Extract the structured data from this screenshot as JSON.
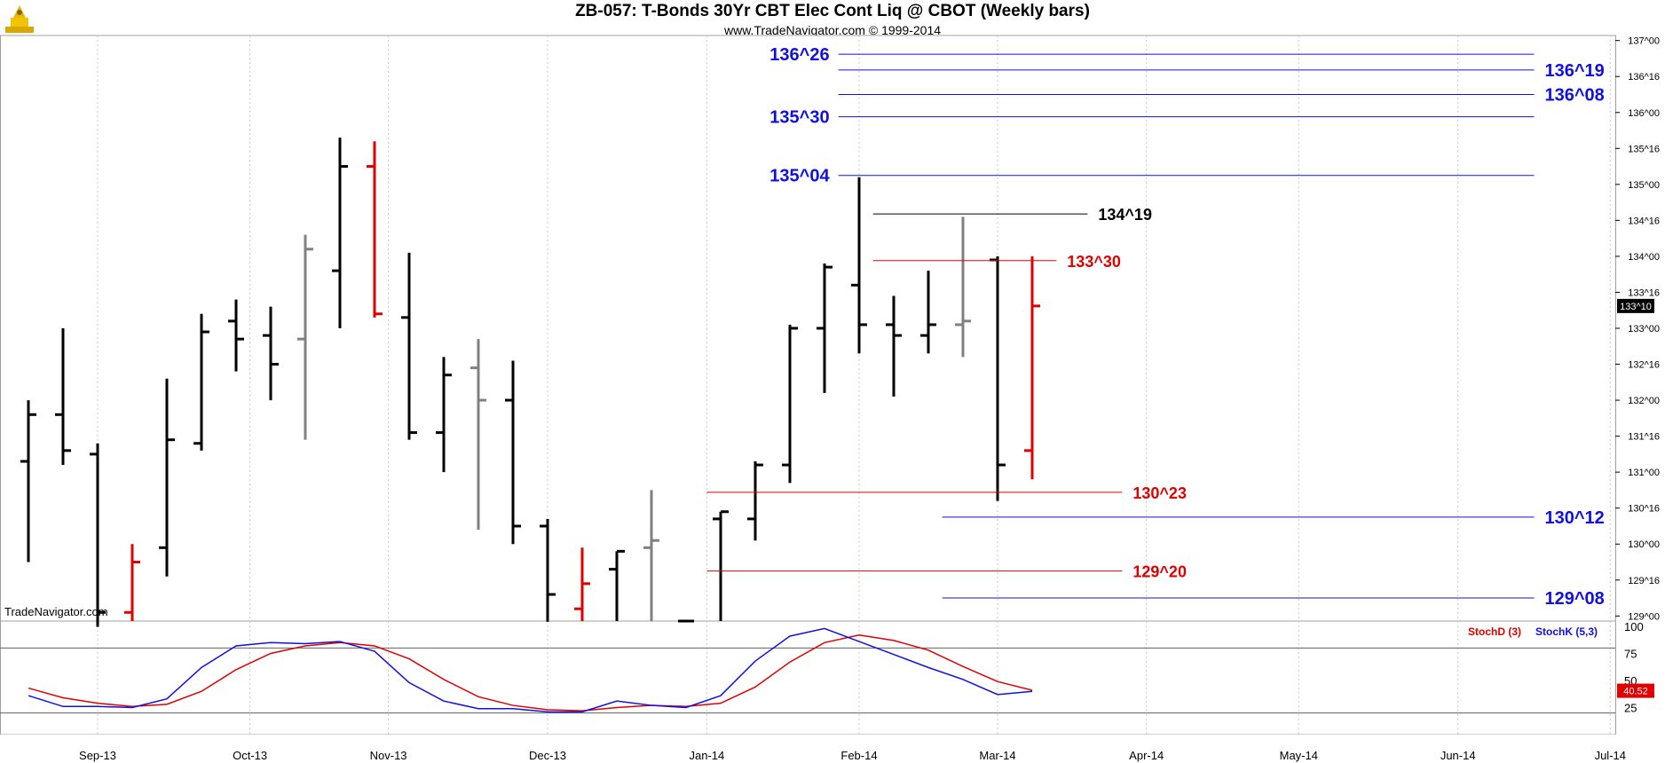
{
  "header": {
    "title": "ZB-057:  T-Bonds 30Yr CBT Elec Cont Liq @ CBOT  (Weekly bars)",
    "subtitle": "www.TradeNavigator.com © 1999-2014",
    "watermark": "TradeNavigator.com"
  },
  "chart_data": {
    "type": "ohlc",
    "price_axis": {
      "range": [
        128.93,
        137.07
      ],
      "ticks": [
        {
          "v": 137.0,
          "label": "137^00"
        },
        {
          "v": 136.5,
          "label": "136^16"
        },
        {
          "v": 136.0,
          "label": "136^00"
        },
        {
          "v": 135.5,
          "label": "135^16"
        },
        {
          "v": 135.0,
          "label": "135^00"
        },
        {
          "v": 134.5,
          "label": "134^16"
        },
        {
          "v": 134.0,
          "label": "134^00"
        },
        {
          "v": 133.5,
          "label": "133^16"
        },
        {
          "v": 133.0,
          "label": "133^00"
        },
        {
          "v": 132.5,
          "label": "132^16"
        },
        {
          "v": 132.0,
          "label": "132^00"
        },
        {
          "v": 131.5,
          "label": "131^16"
        },
        {
          "v": 131.0,
          "label": "131^00"
        },
        {
          "v": 130.5,
          "label": "130^16"
        },
        {
          "v": 130.0,
          "label": "130^00"
        },
        {
          "v": 129.5,
          "label": "129^16"
        },
        {
          "v": 129.0,
          "label": "129^00"
        }
      ],
      "last_price": {
        "v": 133.31,
        "label": "133^10"
      }
    },
    "time_axis": {
      "labels": [
        {
          "w": 2,
          "label": "Sep-13"
        },
        {
          "w": 6.4,
          "label": "Oct-13"
        },
        {
          "w": 10.4,
          "label": "Nov-13"
        },
        {
          "w": 15,
          "label": "Dec-13"
        },
        {
          "w": 19.6,
          "label": "Jan-14"
        },
        {
          "w": 24,
          "label": "Feb-14"
        },
        {
          "w": 28,
          "label": "Mar-14"
        },
        {
          "w": 32.3,
          "label": "Apr-14"
        },
        {
          "w": 36.7,
          "label": "May-14"
        },
        {
          "w": 41.3,
          "label": "Jun-14"
        },
        {
          "w": 45.7,
          "label": "Jul-14"
        }
      ]
    },
    "bars": [
      {
        "w": 0,
        "o": 131.15,
        "h": 132.0,
        "l": 129.75,
        "c": 131.8,
        "color": "#000000"
      },
      {
        "w": 1,
        "o": 131.8,
        "h": 133.0,
        "l": 131.1,
        "c": 131.3,
        "color": "#000000"
      },
      {
        "w": 2,
        "o": 131.25,
        "h": 131.4,
        "l": 128.85,
        "c": 129.05,
        "color": "#000000"
      },
      {
        "w": 3,
        "o": 129.05,
        "h": 130.0,
        "l": 128.93,
        "c": 129.75,
        "color": "#e00000"
      },
      {
        "w": 4,
        "o": 129.95,
        "h": 132.3,
        "l": 129.55,
        "c": 131.45,
        "color": "#000000"
      },
      {
        "w": 5,
        "o": 131.4,
        "h": 133.2,
        "l": 131.3,
        "c": 132.95,
        "color": "#000000"
      },
      {
        "w": 6,
        "o": 133.1,
        "h": 133.4,
        "l": 132.4,
        "c": 132.85,
        "color": "#000000"
      },
      {
        "w": 7,
        "o": 132.9,
        "h": 133.3,
        "l": 132.0,
        "c": 132.5,
        "color": "#000000"
      },
      {
        "w": 8,
        "o": 132.85,
        "h": 134.3,
        "l": 131.45,
        "c": 134.1,
        "color": "#808080"
      },
      {
        "w": 9,
        "o": 133.8,
        "h": 135.65,
        "l": 133.0,
        "c": 135.25,
        "color": "#000000"
      },
      {
        "w": 10,
        "o": 135.25,
        "h": 135.6,
        "l": 133.15,
        "c": 133.2,
        "color": "#e00000"
      },
      {
        "w": 11,
        "o": 133.15,
        "h": 134.05,
        "l": 131.45,
        "c": 131.55,
        "color": "#000000"
      },
      {
        "w": 12,
        "o": 131.55,
        "h": 132.6,
        "l": 131.0,
        "c": 132.35,
        "color": "#000000"
      },
      {
        "w": 13,
        "o": 132.45,
        "h": 132.85,
        "l": 130.2,
        "c": 132.0,
        "color": "#808080"
      },
      {
        "w": 14,
        "o": 132.0,
        "h": 132.55,
        "l": 130.0,
        "c": 130.25,
        "color": "#000000"
      },
      {
        "w": 15,
        "o": 130.25,
        "h": 130.35,
        "l": 128.92,
        "c": 129.3,
        "color": "#000000"
      },
      {
        "w": 16,
        "o": 129.1,
        "h": 129.95,
        "l": 128.93,
        "c": 129.45,
        "color": "#e00000"
      },
      {
        "w": 17,
        "o": 129.65,
        "h": 129.9,
        "l": 128.93,
        "c": 129.9,
        "color": "#000000"
      },
      {
        "w": 18,
        "o": 129.95,
        "h": 130.75,
        "l": 128.93,
        "c": 130.05,
        "color": "#808080"
      },
      {
        "w": 19,
        "o": 128.93,
        "h": 128.93,
        "l": 128.93,
        "c": 128.93,
        "color": "#000000"
      },
      {
        "w": 20,
        "o": 130.35,
        "h": 130.45,
        "l": 128.93,
        "c": 130.45,
        "color": "#000000"
      },
      {
        "w": 21,
        "o": 130.35,
        "h": 131.15,
        "l": 130.05,
        "c": 131.1,
        "color": "#000000"
      },
      {
        "w": 22,
        "o": 131.1,
        "h": 133.05,
        "l": 130.85,
        "c": 133.0,
        "color": "#000000"
      },
      {
        "w": 23,
        "o": 133.0,
        "h": 133.9,
        "l": 132.1,
        "c": 133.85,
        "color": "#000000"
      },
      {
        "w": 24,
        "o": 133.6,
        "h": 135.1,
        "l": 132.65,
        "c": 133.05,
        "color": "#000000"
      },
      {
        "w": 25,
        "o": 133.05,
        "h": 133.45,
        "l": 132.05,
        "c": 132.9,
        "color": "#000000"
      },
      {
        "w": 26,
        "o": 132.9,
        "h": 133.8,
        "l": 132.65,
        "c": 133.05,
        "color": "#000000"
      },
      {
        "w": 27,
        "o": 133.05,
        "h": 134.55,
        "l": 132.6,
        "c": 133.1,
        "color": "#808080"
      },
      {
        "w": 28,
        "o": 133.95,
        "h": 134.0,
        "l": 130.6,
        "c": 131.1,
        "color": "#000000"
      },
      {
        "w": 29,
        "o": 131.3,
        "h": 134.0,
        "l": 130.9,
        "c": 133.31,
        "color": "#e00000"
      }
    ],
    "levels": [
      {
        "v": 136.81,
        "label": "136^26",
        "color": "#1010e0",
        "w0": 23.4,
        "w1": 43.5,
        "label_pos": "left",
        "lw": 23.4
      },
      {
        "v": 136.59,
        "label": "136^19",
        "color": "#1010e0",
        "w0": 23.4,
        "w1": 43.5,
        "label_pos": "right"
      },
      {
        "v": 136.25,
        "label": "136^08",
        "color": "#1010e0",
        "w0": 23.4,
        "w1": 43.5,
        "label_pos": "right"
      },
      {
        "v": 135.94,
        "label": "135^30",
        "color": "#1010e0",
        "w0": 23.4,
        "w1": 43.5,
        "label_pos": "left"
      },
      {
        "v": 135.125,
        "label": "135^04",
        "color": "#1010e0",
        "w0": 23.4,
        "w1": 43.5,
        "label_pos": "left"
      },
      {
        "v": 134.59,
        "label": "134^19",
        "color": "#000000",
        "w0": 24.4,
        "w1": 30.6,
        "label_pos": "right"
      },
      {
        "v": 133.94,
        "label": "133^30",
        "color": "#e00000",
        "w0": 24.4,
        "w1": 29.7,
        "label_pos": "right"
      },
      {
        "v": 130.72,
        "label": "130^23",
        "color": "#e00000",
        "w0": 19.6,
        "w1": 31.6,
        "label_pos": "right"
      },
      {
        "v": 130.375,
        "label": "130^12",
        "color": "#1010e0",
        "w0": 26.4,
        "w1": 43.5,
        "label_pos": "right"
      },
      {
        "v": 129.625,
        "label": "129^20",
        "color": "#e00000",
        "w0": 19.6,
        "w1": 31.6,
        "label_pos": "right"
      },
      {
        "v": 129.25,
        "label": "129^08",
        "color": "#1010e0",
        "w0": 26.4,
        "w1": 43.5,
        "label_pos": "right"
      }
    ],
    "stochastic": {
      "range": [
        0,
        100
      ],
      "ticks": [
        100,
        75,
        50,
        25
      ],
      "ref_lines": [
        80,
        20
      ],
      "legend": [
        {
          "name": "StochD (3)",
          "color": "#e00000"
        },
        {
          "name": "StochK (5,3)",
          "color": "#1010e0"
        }
      ],
      "last_value": {
        "v": 40.52,
        "label": "40.52",
        "color": "#e00000"
      },
      "k_color": "#1010e0",
      "d_color": "#e00000",
      "k": [
        36,
        26,
        26,
        25,
        33,
        62,
        82,
        85,
        84,
        86,
        77,
        48,
        31,
        24,
        24,
        21,
        21,
        31,
        27,
        25,
        36,
        68,
        91,
        98,
        86,
        74,
        62,
        51,
        37,
        40
      ],
      "d": [
        43,
        34,
        29,
        26,
        28,
        40,
        60,
        75,
        82,
        85,
        82,
        70,
        51,
        35,
        27,
        23,
        22,
        25,
        27,
        26,
        29,
        44,
        67,
        85,
        92,
        87,
        78,
        63,
        49,
        41
      ]
    }
  }
}
